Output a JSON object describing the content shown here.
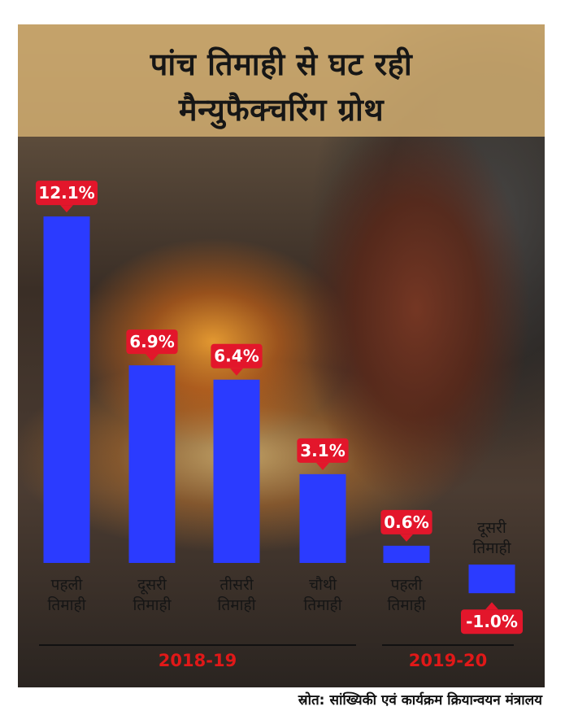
{
  "title_lines": [
    "पांच तिमाही से घट रही",
    "मैन्युफैक्चरिंग ग्रोथ"
  ],
  "colors": {
    "bar": "#2b3bff",
    "badge": "#e3162b",
    "badge_text": "#ffffff",
    "group_label": "#e01818"
  },
  "chart_data": {
    "type": "bar",
    "title": "पांच तिमाही से घट रही मैन्युफैक्चरिंग ग्रोथ",
    "categories": [
      [
        "पहली",
        "तिमाही"
      ],
      [
        "दूसरी",
        "तिमाही"
      ],
      [
        "तीसरी",
        "तिमाही"
      ],
      [
        "चौथी",
        "तिमाही"
      ],
      [
        "पहली",
        "तिमाही"
      ],
      [
        "दूसरी",
        "तिमाही"
      ]
    ],
    "values": [
      12.1,
      6.9,
      6.4,
      3.1,
      0.6,
      -1.0
    ],
    "value_labels": [
      "12.1%",
      "6.9%",
      "6.4%",
      "3.1%",
      "0.6%",
      "-1.0%"
    ],
    "groups": [
      {
        "label": "2018-19",
        "indices": [
          0,
          1,
          2,
          3
        ]
      },
      {
        "label": "2019-20",
        "indices": [
          4,
          5
        ]
      }
    ],
    "grid": false,
    "legend": "none"
  },
  "source": {
    "label": "स्रोत:",
    "text": "सांख्यिकी एवं कार्यक्रम क्रियान्वयन मंत्रालय"
  }
}
